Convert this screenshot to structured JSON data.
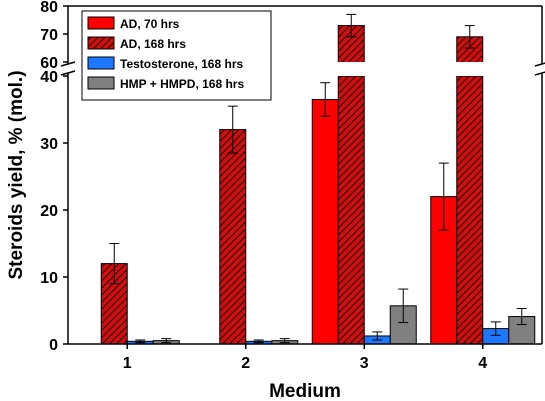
{
  "chart_data": {
    "type": "bar",
    "categories": [
      "1",
      "2",
      "3",
      "4"
    ],
    "xlabel": "Medium",
    "ylabel": "Steroids yield, % (mol.)",
    "axis_break": {
      "lower_range": [
        0,
        40
      ],
      "upper_range": [
        60,
        80
      ]
    },
    "y_ticks_lower": [
      "0",
      "10",
      "20",
      "30",
      "40"
    ],
    "y_ticks_upper": [
      "60",
      "70",
      "80"
    ],
    "legend_position": "top-left",
    "grid": false,
    "series": [
      {
        "name": "AD, 70 hrs",
        "color": "#ff0000",
        "pattern": "solid",
        "values": [
          null,
          null,
          36.5,
          22
        ],
        "errors": [
          null,
          null,
          2.5,
          5
        ]
      },
      {
        "name": "AD, 168 hrs",
        "color": "#cc0000",
        "pattern": "hatched",
        "values": [
          12,
          32,
          73,
          69
        ],
        "errors": [
          3,
          3.5,
          4,
          4
        ]
      },
      {
        "name": "Testosterone, 168 hrs",
        "color": "#1e78ff",
        "pattern": "solid",
        "values": [
          0.4,
          0.4,
          1.2,
          2.3
        ],
        "errors": [
          0.2,
          0.2,
          0.6,
          1.0
        ]
      },
      {
        "name": "HMP + HMPD, 168 hrs",
        "color": "#808080",
        "pattern": "solid",
        "values": [
          0.5,
          0.5,
          5.7,
          4.1
        ],
        "errors": [
          0.3,
          0.3,
          2.5,
          1.2
        ]
      }
    ]
  }
}
